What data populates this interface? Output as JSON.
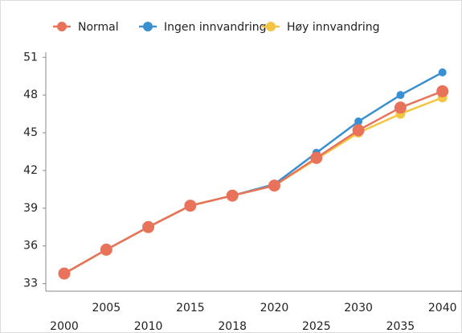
{
  "chart_data": {
    "type": "line",
    "categories": [
      "2000",
      "2005",
      "2010",
      "2015",
      "2018",
      "2020",
      "2025",
      "2030",
      "2035",
      "2040"
    ],
    "series": [
      {
        "name": "Ingen innvandring",
        "color": "#3a8fd0",
        "values": [
          33.8,
          35.7,
          37.5,
          39.2,
          40.0,
          40.9,
          43.4,
          45.9,
          48.0,
          49.8
        ]
      },
      {
        "name": "Høy innvandring",
        "color": "#f4c542",
        "values": [
          33.8,
          35.7,
          37.5,
          39.2,
          40.0,
          40.8,
          42.9,
          45.0,
          46.5,
          47.8
        ]
      },
      {
        "name": "Normal",
        "color": "#e8735a",
        "values": [
          33.8,
          35.7,
          37.5,
          39.2,
          40.0,
          40.8,
          43.0,
          45.2,
          47.0,
          48.3
        ]
      }
    ],
    "legend_order": [
      "Normal",
      "Ingen innvandring",
      "Høy innvandring"
    ],
    "ylim": [
      32.4,
      51.4
    ],
    "yticks": [
      33,
      36,
      39,
      42,
      45,
      48,
      51
    ],
    "grid": false
  }
}
